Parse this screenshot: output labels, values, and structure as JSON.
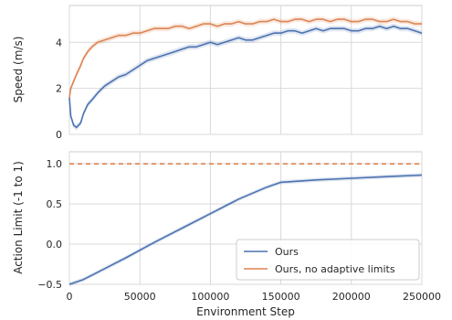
{
  "chart_data": [
    {
      "type": "line",
      "ylabel": "Speed (m/s)",
      "xlabel": "",
      "xlim": [
        0,
        250000
      ],
      "ylim": [
        0,
        5.6
      ],
      "yticks": [
        0,
        2,
        4
      ],
      "xticks": [
        0,
        50000,
        100000,
        150000,
        200000,
        250000
      ],
      "grid": true,
      "colors": {
        "Ours": "#4c72b0",
        "Ours, no adaptive limits": "#dd8452"
      },
      "series": [
        {
          "name": "Ours",
          "color": "#4c72b0",
          "x": [
            0,
            1000,
            3000,
            5000,
            8000,
            10000,
            13000,
            16000,
            20000,
            25000,
            30000,
            35000,
            40000,
            45000,
            50000,
            55000,
            60000,
            65000,
            70000,
            75000,
            80000,
            85000,
            90000,
            95000,
            100000,
            105000,
            110000,
            115000,
            120000,
            125000,
            130000,
            135000,
            140000,
            145000,
            150000,
            155000,
            160000,
            165000,
            170000,
            175000,
            180000,
            185000,
            190000,
            195000,
            200000,
            205000,
            210000,
            215000,
            220000,
            225000,
            230000,
            235000,
            240000,
            245000,
            250000
          ],
          "y": [
            1.6,
            0.8,
            0.4,
            0.3,
            0.5,
            0.9,
            1.3,
            1.5,
            1.8,
            2.1,
            2.3,
            2.5,
            2.6,
            2.8,
            3.0,
            3.2,
            3.3,
            3.4,
            3.5,
            3.6,
            3.7,
            3.8,
            3.8,
            3.9,
            4.0,
            3.9,
            4.0,
            4.1,
            4.2,
            4.1,
            4.1,
            4.2,
            4.3,
            4.4,
            4.4,
            4.5,
            4.5,
            4.4,
            4.5,
            4.6,
            4.5,
            4.6,
            4.6,
            4.6,
            4.5,
            4.5,
            4.6,
            4.6,
            4.7,
            4.6,
            4.7,
            4.6,
            4.6,
            4.5,
            4.4
          ]
        },
        {
          "name": "Ours, no adaptive limits",
          "color": "#dd8452",
          "x": [
            0,
            1000,
            3000,
            5000,
            8000,
            10000,
            13000,
            16000,
            20000,
            25000,
            30000,
            35000,
            40000,
            45000,
            50000,
            55000,
            60000,
            65000,
            70000,
            75000,
            80000,
            85000,
            90000,
            95000,
            100000,
            105000,
            110000,
            115000,
            120000,
            125000,
            130000,
            135000,
            140000,
            145000,
            150000,
            155000,
            160000,
            165000,
            170000,
            175000,
            180000,
            185000,
            190000,
            195000,
            200000,
            205000,
            210000,
            215000,
            220000,
            225000,
            230000,
            235000,
            240000,
            245000,
            250000
          ],
          "y": [
            1.6,
            2.0,
            2.3,
            2.6,
            3.0,
            3.3,
            3.6,
            3.8,
            4.0,
            4.1,
            4.2,
            4.3,
            4.3,
            4.4,
            4.4,
            4.5,
            4.6,
            4.6,
            4.6,
            4.7,
            4.7,
            4.6,
            4.7,
            4.8,
            4.8,
            4.7,
            4.8,
            4.8,
            4.9,
            4.8,
            4.8,
            4.9,
            4.9,
            5.0,
            4.9,
            4.9,
            5.0,
            5.0,
            4.9,
            5.0,
            5.0,
            4.9,
            5.0,
            5.0,
            4.9,
            4.9,
            5.0,
            5.0,
            4.9,
            4.9,
            5.0,
            4.9,
            4.9,
            4.8,
            4.8
          ]
        }
      ]
    },
    {
      "type": "line",
      "ylabel": "Action Limit (-1 to 1)",
      "xlabel": "Environment Step",
      "xlim": [
        0,
        250000
      ],
      "ylim": [
        -0.5,
        1.15
      ],
      "yticks": [
        -0.5,
        0.0,
        0.5,
        1.0
      ],
      "ytick_labels": [
        "−0.5",
        "0.0",
        "0.5",
        "1.0"
      ],
      "xticks": [
        0,
        50000,
        100000,
        150000,
        200000,
        250000
      ],
      "xtick_labels": [
        "0",
        "50000",
        "100000",
        "150000",
        "200000",
        "250000"
      ],
      "grid": true,
      "legend": "bottom-right",
      "series": [
        {
          "name": "Ours",
          "color": "#4c72b0",
          "style": "solid",
          "x": [
            0,
            10000,
            20000,
            40000,
            60000,
            80000,
            100000,
            120000,
            140000,
            150000,
            175000,
            200000,
            225000,
            250000
          ],
          "y": [
            -0.5,
            -0.44,
            -0.35,
            -0.17,
            0.02,
            0.2,
            0.38,
            0.56,
            0.71,
            0.77,
            0.8,
            0.82,
            0.84,
            0.86
          ]
        },
        {
          "name": "Ours, no adaptive limits",
          "color": "#dd8452",
          "style": "dashed",
          "x": [
            0,
            250000
          ],
          "y": [
            1.0,
            1.0
          ]
        }
      ]
    }
  ]
}
